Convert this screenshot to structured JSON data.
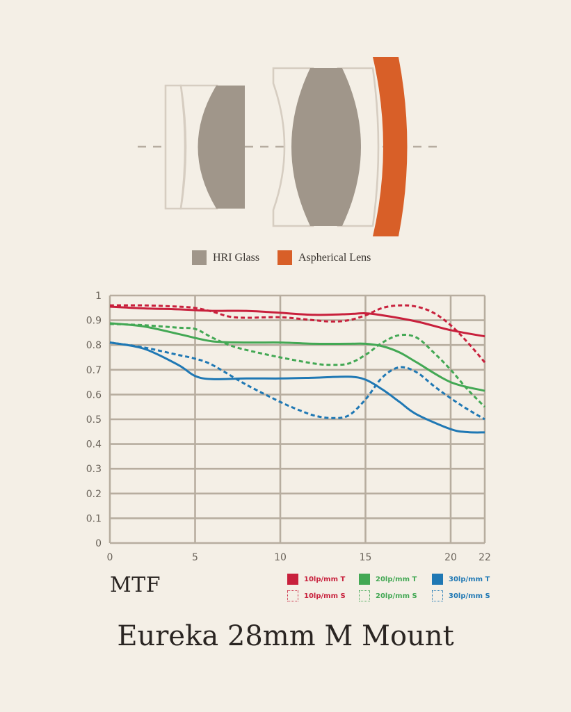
{
  "diagram_legend": [
    {
      "label": "HRI Glass",
      "color": "#a0968a"
    },
    {
      "label": "Aspherical Lens",
      "color": "#d85f28"
    }
  ],
  "mtf_label": "MTF",
  "title": "Eureka 28mm M Mount",
  "chart_data": {
    "type": "line",
    "title": "",
    "xlabel": "",
    "ylabel": "",
    "xlim": [
      0,
      22
    ],
    "ylim": [
      0,
      1
    ],
    "xticks": [
      0,
      5,
      10,
      15,
      20,
      22
    ],
    "yticks": [
      0,
      0.1,
      0.2,
      0.3,
      0.4,
      0.5,
      0.6,
      0.7,
      0.8,
      0.9,
      1
    ],
    "grid": true,
    "legend_position": "bottom-right",
    "series": [
      {
        "name": "10lp/mm T",
        "color": "#c8203c",
        "style": "solid",
        "x": [
          0,
          2,
          4,
          6,
          8,
          10,
          12,
          14,
          15,
          16,
          18,
          20,
          22
        ],
        "y": [
          0.955,
          0.948,
          0.944,
          0.938,
          0.938,
          0.93,
          0.922,
          0.925,
          0.928,
          0.92,
          0.895,
          0.86,
          0.835
        ]
      },
      {
        "name": "10lp/mm S",
        "color": "#c8203c",
        "style": "dotted",
        "x": [
          0,
          2,
          4,
          5,
          6,
          7,
          8,
          10,
          12,
          13,
          14,
          15,
          16,
          17,
          18,
          19,
          20,
          21,
          22
        ],
        "y": [
          0.96,
          0.96,
          0.955,
          0.95,
          0.935,
          0.915,
          0.91,
          0.912,
          0.9,
          0.895,
          0.9,
          0.92,
          0.95,
          0.96,
          0.955,
          0.93,
          0.88,
          0.81,
          0.73
        ]
      },
      {
        "name": "20lp/mm T",
        "color": "#43a854",
        "style": "solid",
        "x": [
          0,
          2,
          4,
          6,
          8,
          10,
          12,
          14,
          15,
          16,
          17,
          18,
          20,
          22
        ],
        "y": [
          0.888,
          0.875,
          0.845,
          0.815,
          0.81,
          0.81,
          0.805,
          0.805,
          0.805,
          0.795,
          0.77,
          0.73,
          0.65,
          0.615
        ]
      },
      {
        "name": "20lp/mm S",
        "color": "#43a854",
        "style": "dotted",
        "x": [
          0,
          2,
          4,
          5,
          6,
          7,
          8,
          10,
          12,
          13,
          14,
          15,
          16,
          17,
          18,
          19,
          20,
          21,
          22
        ],
        "y": [
          0.885,
          0.88,
          0.87,
          0.865,
          0.83,
          0.8,
          0.78,
          0.75,
          0.725,
          0.72,
          0.725,
          0.76,
          0.81,
          0.84,
          0.83,
          0.77,
          0.7,
          0.62,
          0.55
        ]
      },
      {
        "name": "30lp/mm T",
        "color": "#1f78b4",
        "style": "solid",
        "x": [
          0,
          2,
          4,
          5,
          6,
          8,
          10,
          12,
          14,
          15,
          16,
          17,
          18,
          20,
          21,
          22
        ],
        "y": [
          0.81,
          0.785,
          0.72,
          0.675,
          0.662,
          0.665,
          0.665,
          0.668,
          0.672,
          0.66,
          0.62,
          0.57,
          0.52,
          0.46,
          0.448,
          0.447
        ]
      },
      {
        "name": "30lp/mm S",
        "color": "#1f78b4",
        "style": "dotted",
        "x": [
          0,
          2,
          4,
          5,
          6,
          8,
          10,
          11,
          12,
          13,
          14,
          15,
          16,
          17,
          18,
          19,
          20,
          21,
          22
        ],
        "y": [
          0.81,
          0.79,
          0.76,
          0.745,
          0.72,
          0.64,
          0.57,
          0.54,
          0.515,
          0.505,
          0.515,
          0.58,
          0.67,
          0.71,
          0.69,
          0.635,
          0.585,
          0.54,
          0.5
        ]
      }
    ]
  }
}
